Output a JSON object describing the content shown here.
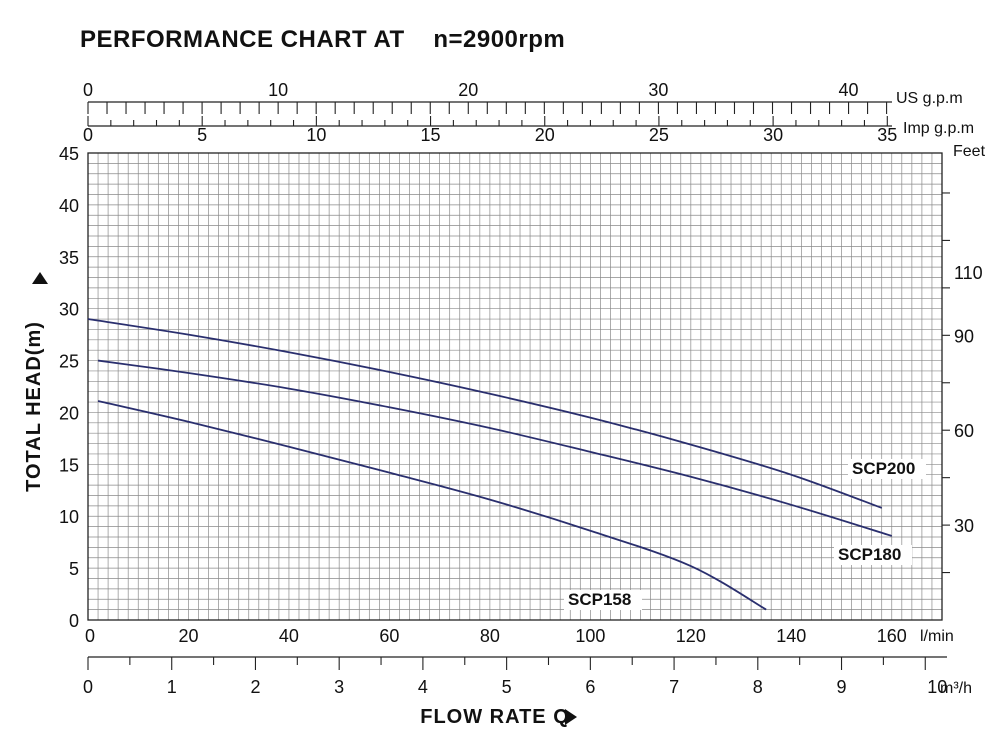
{
  "title": "PERFORMANCE CHART AT    n=2900rpm",
  "chart_data": {
    "type": "line",
    "title": "PERFORMANCE CHART AT    n=2900rpm",
    "xlabel": "FLOW RATE Q",
    "ylabel": "TOTAL HEAD(m)",
    "x_unit": "l/min",
    "y_unit": "m",
    "xlim": [
      0,
      170
    ],
    "ylim": [
      0,
      45
    ],
    "grid": true,
    "x_ticks": [
      0,
      20,
      40,
      60,
      80,
      100,
      120,
      140,
      160
    ],
    "y_ticks": [
      0,
      5,
      10,
      15,
      20,
      25,
      30,
      35,
      40,
      45
    ],
    "secondary_axes": {
      "us_gpm": {
        "label": "US g.p.m",
        "ticks": [
          0,
          10,
          20,
          30,
          40
        ]
      },
      "imp_gpm": {
        "label": "Imp g.p.m",
        "ticks": [
          0,
          5,
          10,
          15,
          20,
          25,
          30,
          35
        ]
      },
      "feet": {
        "label": "Feet",
        "ticks": [
          30,
          60,
          90,
          110
        ]
      },
      "m3h": {
        "label": "m³/h",
        "ticks": [
          0,
          1,
          2,
          3,
          4,
          5,
          6,
          7,
          8,
          9,
          10
        ]
      }
    },
    "series": [
      {
        "name": "SCP200",
        "x": [
          0,
          20,
          40,
          60,
          80,
          100,
          120,
          140,
          158
        ],
        "y": [
          29.0,
          27.5,
          25.8,
          23.9,
          21.8,
          19.5,
          16.9,
          14.0,
          10.8
        ]
      },
      {
        "name": "SCP180",
        "x": [
          2,
          20,
          40,
          60,
          80,
          100,
          120,
          140,
          160
        ],
        "y": [
          25.0,
          23.8,
          22.3,
          20.5,
          18.5,
          16.2,
          13.8,
          11.1,
          8.1
        ]
      },
      {
        "name": "SCP158",
        "x": [
          2,
          20,
          40,
          60,
          80,
          100,
          120,
          135
        ],
        "y": [
          21.1,
          19.1,
          16.7,
          14.2,
          11.6,
          8.6,
          5.2,
          1.0
        ]
      }
    ]
  }
}
